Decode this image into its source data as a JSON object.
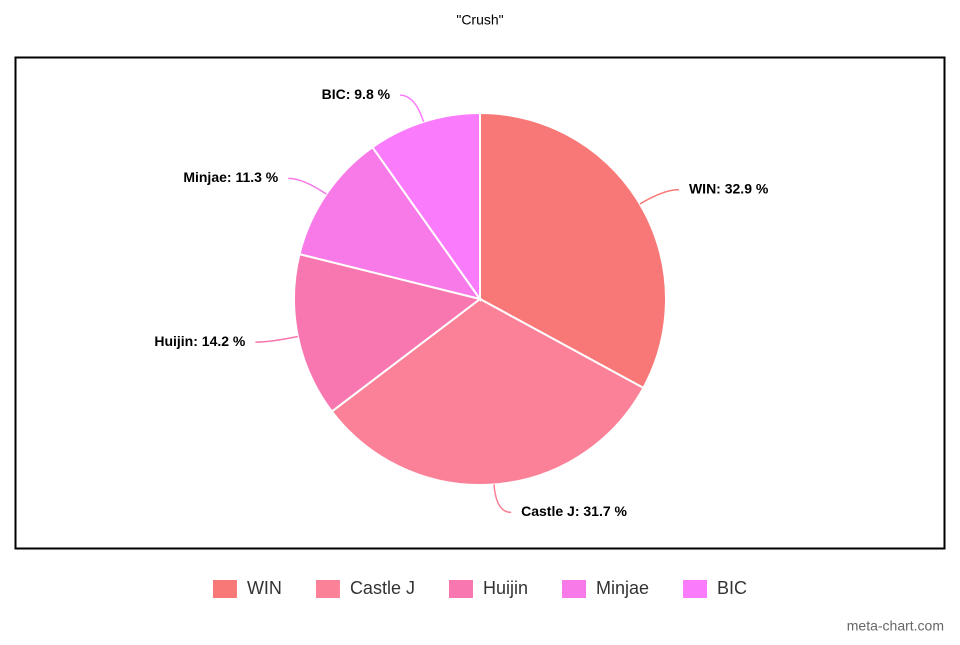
{
  "chart_data": {
    "type": "pie",
    "title": "\"Crush\"",
    "categories": [
      "WIN",
      "Castle J",
      "Huijin",
      "Minjae",
      "BIC"
    ],
    "values": [
      32.9,
      31.7,
      14.2,
      11.3,
      9.8
    ],
    "value_labels": [
      "WIN: 32.9 %",
      "Castle J: 31.7 %",
      "Huijin: 14.2 %",
      "Minjae: 11.3 %",
      "BIC: 9.8 %"
    ],
    "colors": [
      "#f87878",
      "#fb8198",
      "#f877b0",
      "#f87ae8",
      "#fa7cfc"
    ],
    "legend": "bottom"
  },
  "watermark": "meta-chart.com"
}
